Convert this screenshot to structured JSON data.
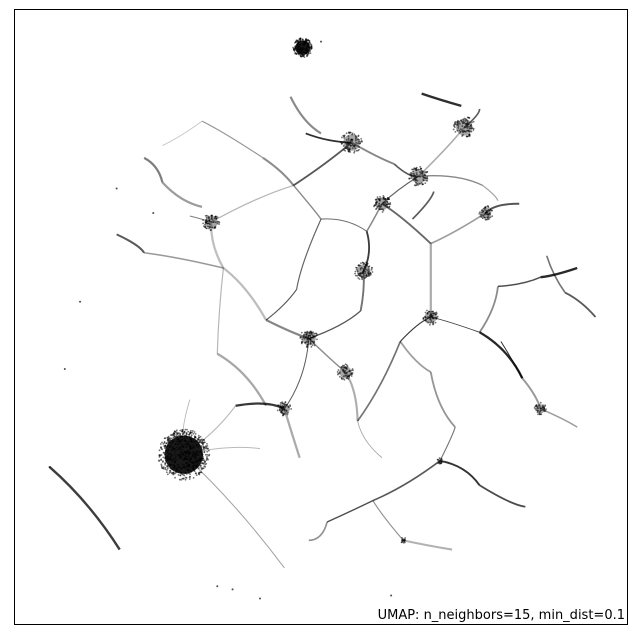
{
  "chart_data": {
    "type": "scatter",
    "title": "",
    "xlabel": "",
    "ylabel": "",
    "axes_ticks": "none",
    "annotation": "UMAP: n_neighbors=15, min_dist=0.1",
    "point_color": "#000000",
    "edge_color": "#000000",
    "background": "#ffffff",
    "xlim": [
      0,
      100
    ],
    "ylim": [
      0,
      100
    ],
    "clusters": [
      {
        "name": "dense-blob-large",
        "x": 27.5,
        "y": 27.5,
        "r": 4.2,
        "n": 600
      },
      {
        "name": "dense-blob-small",
        "x": 47.0,
        "y": 94.0,
        "r": 1.6,
        "n": 180
      },
      {
        "name": "hub-1",
        "x": 55.0,
        "y": 78.5,
        "r": 1.8,
        "n": 90
      },
      {
        "name": "hub-2",
        "x": 73.5,
        "y": 81.0,
        "r": 1.8,
        "n": 90
      },
      {
        "name": "hub-3",
        "x": 66.0,
        "y": 73.0,
        "r": 1.6,
        "n": 80
      },
      {
        "name": "hub-4",
        "x": 32.0,
        "y": 65.5,
        "r": 1.4,
        "n": 70
      },
      {
        "name": "hub-5",
        "x": 57.0,
        "y": 57.5,
        "r": 1.5,
        "n": 80
      },
      {
        "name": "hub-6",
        "x": 48.0,
        "y": 46.5,
        "r": 1.5,
        "n": 80
      },
      {
        "name": "hub-7",
        "x": 54.0,
        "y": 41.0,
        "r": 1.3,
        "n": 60
      },
      {
        "name": "hub-8",
        "x": 44.0,
        "y": 35.0,
        "r": 1.2,
        "n": 50
      },
      {
        "name": "hub-9",
        "x": 68.0,
        "y": 50.0,
        "r": 1.3,
        "n": 60
      },
      {
        "name": "hub-10",
        "x": 77.0,
        "y": 67.0,
        "r": 1.2,
        "n": 50
      },
      {
        "name": "hub-11",
        "x": 86.0,
        "y": 35.0,
        "r": 1.0,
        "n": 40
      },
      {
        "name": "hub-12",
        "x": 60.0,
        "y": 68.5,
        "r": 1.4,
        "n": 70
      },
      {
        "name": "dot-a",
        "x": 69.5,
        "y": 26.5,
        "r": 0.5,
        "n": 15
      },
      {
        "name": "dot-b",
        "x": 63.5,
        "y": 13.5,
        "r": 0.5,
        "n": 15
      }
    ],
    "edges": [
      [
        30.5,
        82.0,
        40.5,
        76.0
      ],
      [
        40.5,
        76.0,
        45.5,
        71.5
      ],
      [
        45.5,
        71.5,
        55.0,
        78.5
      ],
      [
        55.0,
        78.5,
        62.0,
        75.0
      ],
      [
        62.0,
        75.0,
        66.0,
        73.0
      ],
      [
        66.0,
        73.0,
        73.5,
        81.0
      ],
      [
        73.5,
        81.0,
        76.0,
        84.0
      ],
      [
        66.0,
        73.0,
        76.5,
        71.5
      ],
      [
        76.5,
        71.5,
        79.0,
        69.0
      ],
      [
        47.5,
        80.0,
        55.0,
        78.5
      ],
      [
        32.0,
        65.5,
        45.5,
        71.5
      ],
      [
        28.5,
        66.5,
        32.0,
        65.5
      ],
      [
        45.5,
        71.5,
        50.0,
        66.0
      ],
      [
        50.0,
        66.0,
        57.5,
        64.0
      ],
      [
        57.5,
        64.0,
        60.0,
        68.5
      ],
      [
        60.0,
        68.5,
        66.0,
        73.0
      ],
      [
        57.5,
        64.0,
        57.0,
        57.5
      ],
      [
        57.0,
        57.5,
        56.5,
        51.0
      ],
      [
        56.5,
        51.0,
        48.0,
        46.5
      ],
      [
        48.0,
        46.5,
        54.0,
        41.0
      ],
      [
        54.0,
        41.0,
        56.0,
        33.0
      ],
      [
        56.0,
        33.0,
        60.0,
        27.0
      ],
      [
        48.0,
        46.5,
        44.0,
        35.0
      ],
      [
        44.0,
        35.0,
        46.5,
        27.0
      ],
      [
        44.0,
        35.0,
        36.0,
        35.5
      ],
      [
        27.5,
        27.5,
        36.0,
        35.5
      ],
      [
        50.0,
        66.0,
        46.0,
        54.5
      ],
      [
        46.0,
        54.5,
        41.0,
        49.5
      ],
      [
        41.0,
        49.5,
        48.0,
        46.5
      ],
      [
        32.0,
        65.5,
        34.0,
        58.0
      ],
      [
        34.0,
        58.0,
        41.0,
        49.5
      ],
      [
        60.0,
        68.5,
        68.0,
        62.0
      ],
      [
        68.0,
        62.0,
        77.0,
        67.0
      ],
      [
        77.0,
        67.0,
        82.5,
        68.5
      ],
      [
        68.0,
        62.0,
        68.0,
        50.0
      ],
      [
        68.0,
        50.0,
        76.0,
        47.5
      ],
      [
        76.0,
        47.5,
        83.0,
        40.0
      ],
      [
        83.0,
        40.0,
        86.0,
        35.0
      ],
      [
        86.0,
        35.0,
        92.0,
        32.0
      ],
      [
        76.0,
        47.5,
        79.0,
        55.0
      ],
      [
        79.0,
        55.0,
        86.0,
        56.5
      ],
      [
        86.0,
        56.5,
        92.0,
        58.0
      ],
      [
        68.0,
        50.0,
        63.0,
        46.0
      ],
      [
        63.0,
        46.0,
        56.0,
        33.0
      ],
      [
        72.0,
        32.0,
        69.5,
        26.5
      ],
      [
        69.5,
        26.5,
        58.5,
        20.0
      ],
      [
        58.5,
        20.0,
        51.0,
        16.5
      ],
      [
        51.0,
        16.5,
        48.0,
        13.5
      ],
      [
        58.5,
        20.0,
        63.5,
        13.5
      ],
      [
        63.5,
        13.5,
        71.5,
        12.0
      ],
      [
        69.5,
        26.5,
        76.0,
        22.5
      ],
      [
        76.0,
        22.5,
        83.5,
        19.0
      ],
      [
        27.5,
        27.5,
        40.0,
        28.5
      ],
      [
        27.5,
        27.5,
        28.5,
        36.5
      ],
      [
        27.5,
        27.5,
        44.0,
        9.0
      ],
      [
        34.0,
        58.0,
        21.0,
        60.5
      ],
      [
        21.0,
        60.5,
        16.5,
        63.5
      ],
      [
        34.0,
        58.0,
        33.0,
        44.0
      ],
      [
        33.0,
        44.0,
        41.0,
        35.5
      ],
      [
        63.0,
        46.0,
        68.0,
        41.0
      ],
      [
        68.0,
        41.0,
        72.0,
        32.0
      ],
      [
        83.0,
        40.0,
        79.5,
        46.0
      ],
      [
        24.0,
        78.0,
        30.5,
        82.0
      ],
      [
        30.5,
        68.0,
        24.0,
        72.0
      ],
      [
        24.0,
        72.0,
        21.0,
        76.0
      ],
      [
        65.0,
        66.0,
        68.5,
        70.5
      ],
      [
        87.0,
        60.0,
        90.0,
        54.0
      ],
      [
        90.0,
        54.0,
        95.0,
        50.0
      ],
      [
        17.0,
        12.0,
        5.5,
        25.5
      ],
      [
        66.5,
        86.5,
        73.0,
        84.5
      ],
      [
        50.0,
        80.0,
        45.0,
        86.0
      ]
    ],
    "stray_points": [
      [
        5.5,
        25.5
      ],
      [
        10.5,
        52.5
      ],
      [
        8.0,
        41.5
      ],
      [
        33.0,
        6.0
      ],
      [
        35.5,
        5.5
      ],
      [
        16.5,
        71.0
      ],
      [
        22.5,
        67.0
      ],
      [
        50.0,
        95.0
      ],
      [
        40.0,
        4.0
      ],
      [
        61.5,
        4.5
      ]
    ]
  }
}
